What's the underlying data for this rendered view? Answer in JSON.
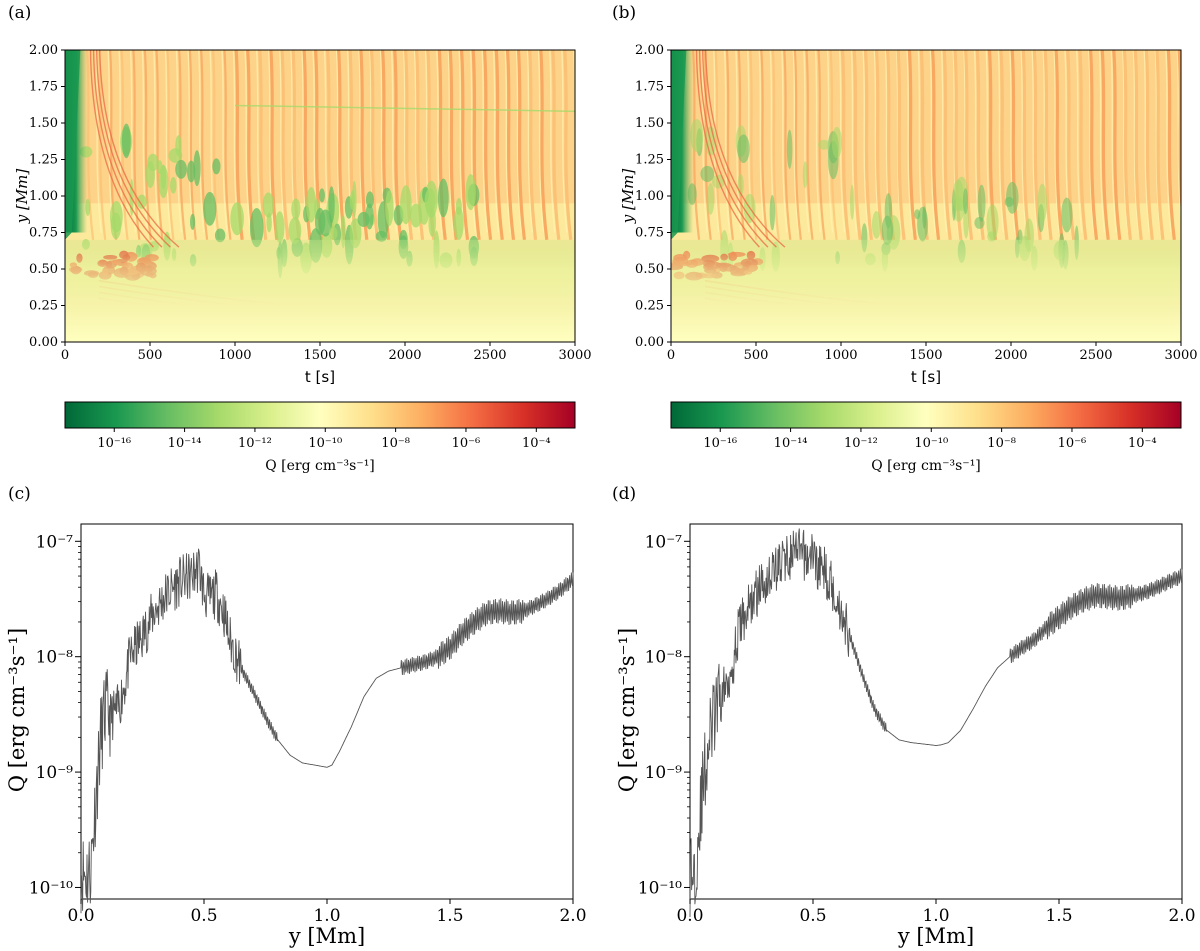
{
  "panels": {
    "a": {
      "label": "(a)"
    },
    "b": {
      "label": "(b)"
    },
    "c": {
      "label": "(c)"
    },
    "d": {
      "label": "(d)"
    }
  },
  "colors": {
    "cmap": [
      "#006837",
      "#1a9850",
      "#66bd63",
      "#a6d96a",
      "#d9ef8b",
      "#ffffbf",
      "#fee08b",
      "#fdae61",
      "#f46d43",
      "#d73027",
      "#a50026"
    ],
    "line": "#555555"
  },
  "chart_data": [
    {
      "panel": "a",
      "type": "heatmap",
      "xlabel": "t [s]",
      "ylabel": "y [Mm]",
      "xlim": [
        0,
        3000
      ],
      "ylim": [
        0,
        2.0
      ],
      "xticks": [
        "0",
        "500",
        "1000",
        "1500",
        "2000",
        "2500",
        "3000"
      ],
      "yticks": [
        "0.00",
        "0.25",
        "0.50",
        "0.75",
        "1.00",
        "1.25",
        "1.50",
        "1.75",
        "2.00"
      ],
      "colorbar": {
        "label": "Q [erg cm⁻³s⁻¹]",
        "scale": "log",
        "ticks": [
          "10⁻¹⁶",
          "10⁻¹⁴",
          "10⁻¹²",
          "10⁻¹⁰",
          "10⁻⁸",
          "10⁻⁶",
          "10⁻⁴"
        ]
      }
    },
    {
      "panel": "b",
      "type": "heatmap",
      "xlabel": "t [s]",
      "ylabel": "y [Mm]",
      "xlim": [
        0,
        3000
      ],
      "ylim": [
        0,
        2.0
      ],
      "xticks": [
        "0",
        "500",
        "1000",
        "1500",
        "2000",
        "2500",
        "3000"
      ],
      "yticks": [
        "0.00",
        "0.25",
        "0.50",
        "0.75",
        "1.00",
        "1.25",
        "1.50",
        "1.75",
        "2.00"
      ],
      "colorbar": {
        "label": "Q [erg cm⁻³s⁻¹]",
        "scale": "log",
        "ticks": [
          "10⁻¹⁶",
          "10⁻¹⁴",
          "10⁻¹²",
          "10⁻¹⁰",
          "10⁻⁸",
          "10⁻⁶",
          "10⁻⁴"
        ]
      }
    },
    {
      "panel": "c",
      "type": "line",
      "xlabel": "y [Mm]",
      "ylabel": "Q [erg cm⁻³s⁻¹]",
      "xlim": [
        0,
        2.0
      ],
      "ylim_log10": [
        -10.1,
        -6.85
      ],
      "yscale": "log",
      "xticks": [
        "0.0",
        "0.5",
        "1.0",
        "1.5",
        "2.0"
      ],
      "yticks": [
        "10⁻¹⁰",
        "10⁻⁹",
        "10⁻⁸",
        "10⁻⁷"
      ],
      "series": [
        {
          "x": [
            0.0,
            0.02,
            0.04,
            0.06,
            0.08,
            0.1,
            0.12,
            0.15,
            0.18,
            0.2,
            0.25,
            0.3,
            0.35,
            0.4,
            0.45,
            0.48,
            0.5,
            0.52,
            0.55,
            0.58,
            0.6,
            0.65,
            0.7,
            0.75,
            0.8,
            0.85,
            0.9,
            0.95,
            1.0,
            1.02,
            1.05,
            1.1,
            1.15,
            1.2,
            1.25,
            1.3,
            1.35,
            1.4,
            1.45,
            1.5,
            1.55,
            1.6,
            1.65,
            1.7,
            1.75,
            1.8,
            1.85,
            1.9,
            1.95,
            2.0
          ],
          "y": [
            1.4e-10,
            1.3e-10,
            1.5e-10,
            6e-10,
            2e-09,
            3.5e-09,
            3e-09,
            3.5e-09,
            6e-09,
            1e-08,
            1.5e-08,
            2.5e-08,
            3.5e-08,
            4.5e-08,
            5e-08,
            6e-08,
            3.5e-08,
            3.2e-08,
            3.5e-08,
            2.5e-08,
            1.5e-08,
            8e-09,
            5e-09,
            3e-09,
            1.9e-09,
            1.4e-09,
            1.2e-09,
            1.15e-09,
            1.1e-09,
            1.15e-09,
            1.5e-09,
            2.5e-09,
            4.5e-09,
            6.5e-09,
            7.5e-09,
            8e-09,
            8.5e-09,
            9e-09,
            1e-08,
            1.2e-08,
            1.6e-08,
            2e-08,
            2.4e-08,
            2.5e-08,
            2.4e-08,
            2.5e-08,
            2.8e-08,
            3.2e-08,
            3.8e-08,
            4.7e-08
          ]
        }
      ]
    },
    {
      "panel": "d",
      "type": "line",
      "xlabel": "y [Mm]",
      "ylabel": "Q [erg cm⁻³s⁻¹]",
      "xlim": [
        0,
        2.0
      ],
      "ylim_log10": [
        -10.1,
        -6.85
      ],
      "yscale": "log",
      "xticks": [
        "0.0",
        "0.5",
        "1.0",
        "1.5",
        "2.0"
      ],
      "yticks": [
        "10⁻¹⁰",
        "10⁻⁹",
        "10⁻⁸",
        "10⁻⁷"
      ],
      "series": [
        {
          "x": [
            0.0,
            0.02,
            0.04,
            0.06,
            0.08,
            0.1,
            0.12,
            0.15,
            0.18,
            0.2,
            0.25,
            0.3,
            0.35,
            0.4,
            0.45,
            0.48,
            0.5,
            0.52,
            0.55,
            0.58,
            0.6,
            0.65,
            0.7,
            0.75,
            0.8,
            0.85,
            0.9,
            0.95,
            1.0,
            1.02,
            1.05,
            1.1,
            1.15,
            1.2,
            1.25,
            1.3,
            1.35,
            1.4,
            1.45,
            1.5,
            1.55,
            1.6,
            1.65,
            1.7,
            1.75,
            1.8,
            1.85,
            1.9,
            1.95,
            2.0
          ],
          "y": [
            1.3e-10,
            1.4e-10,
            4e-10,
            1e-09,
            2e-09,
            3e-09,
            4e-09,
            6e-09,
            1e-08,
            1.8e-08,
            3e-08,
            4.5e-08,
            6e-08,
            7.5e-08,
            8e-08,
            7e-08,
            8e-08,
            6e-08,
            5.5e-08,
            4e-08,
            3e-08,
            1.5e-08,
            7e-09,
            3.5e-09,
            2.3e-09,
            1.9e-09,
            1.8e-09,
            1.75e-09,
            1.7e-09,
            1.72e-09,
            1.8e-09,
            2.3e-09,
            3.5e-09,
            5.5e-09,
            8e-09,
            1e-08,
            1.2e-08,
            1.4e-08,
            1.8e-08,
            2.2e-08,
            2.7e-08,
            3.1e-08,
            3.4e-08,
            3.3e-08,
            3.2e-08,
            3.4e-08,
            3.6e-08,
            4e-08,
            4.5e-08,
            5e-08
          ]
        }
      ]
    }
  ]
}
